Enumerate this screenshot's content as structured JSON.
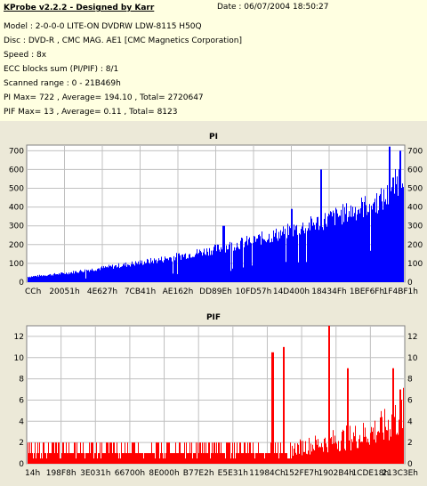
{
  "header": {
    "app_title": "KProbe v2.2.2 - Designed by Karr",
    "date": "Date : 06/07/2004 18:50:27",
    "model": "Model : 2-0-0-0 LITE-ON DVDRW LDW-8115   H50Q",
    "disc": "Disc : DVD-R , CMC MAG. AE1 [CMC Magnetics Corporation]",
    "speed": "Speed : 8x",
    "ecc": "ECC blocks sum (PI/PIF) : 8/1",
    "range": "Scanned range : 0 - 21B469h",
    "pi_stats": "PI Max= 722 , Average= 194.10 , Total= 2720647",
    "pif_stats": "PIF Max= 13 , Average= 0.11 , Total= 8123"
  },
  "colors": {
    "bar": "#0000ff",
    "pif_bar": "#ff0000",
    "grid": "#c0c0c0",
    "background": "#ffffff",
    "panel": "#ece9d8"
  },
  "chart_data": [
    {
      "type": "bar",
      "title": "PI",
      "ylim": [
        0,
        730
      ],
      "yticks": [
        0,
        100,
        200,
        300,
        400,
        500,
        600,
        700
      ],
      "xtick_labels": [
        "CCh",
        "20051h",
        "4E627h",
        "7CB41h",
        "AE162h",
        "DD89Eh",
        "10FD57h",
        "14D400h",
        "18434Fh",
        "1BEF6Fh",
        "1F4BF1h"
      ],
      "grid": true,
      "envelope": [
        [
          0,
          30
        ],
        [
          5,
          40
        ],
        [
          10,
          50
        ],
        [
          15,
          65
        ],
        [
          20,
          80
        ],
        [
          25,
          95
        ],
        [
          30,
          110
        ],
        [
          35,
          125
        ],
        [
          40,
          145
        ],
        [
          45,
          165
        ],
        [
          50,
          185
        ],
        [
          55,
          210
        ],
        [
          60,
          235
        ],
        [
          65,
          260
        ],
        [
          70,
          290
        ],
        [
          75,
          320
        ],
        [
          80,
          355
        ],
        [
          85,
          390
        ],
        [
          90,
          430
        ],
        [
          95,
          470
        ],
        [
          98,
          560
        ],
        [
          100,
          640
        ]
      ],
      "spikes": [
        [
          52,
          300
        ],
        [
          70,
          390
        ],
        [
          78,
          600
        ],
        [
          96,
          722
        ],
        [
          99,
          700
        ]
      ]
    },
    {
      "type": "bar",
      "title": "PIF",
      "ylim": [
        0,
        13
      ],
      "yticks": [
        0,
        2,
        4,
        6,
        8,
        10,
        12
      ],
      "xtick_labels": [
        "14h",
        "198F8h",
        "3E031h",
        "66700h",
        "8E000h",
        "B77E2h",
        "E5E31h",
        "11984Ch",
        "152FE7h",
        "1902B4h",
        "1CDE18h",
        "213C3Eh"
      ],
      "grid": true,
      "envelope": [
        [
          0,
          2
        ],
        [
          20,
          2
        ],
        [
          40,
          2
        ],
        [
          60,
          2
        ],
        [
          70,
          2
        ],
        [
          75,
          2.5
        ],
        [
          80,
          3
        ],
        [
          85,
          3.5
        ],
        [
          90,
          4
        ],
        [
          95,
          5
        ],
        [
          100,
          7
        ]
      ],
      "spikes": [
        [
          65,
          10.5
        ],
        [
          68,
          11
        ],
        [
          80,
          13
        ],
        [
          85,
          9
        ],
        [
          97,
          9
        ],
        [
          99,
          7
        ]
      ]
    }
  ]
}
